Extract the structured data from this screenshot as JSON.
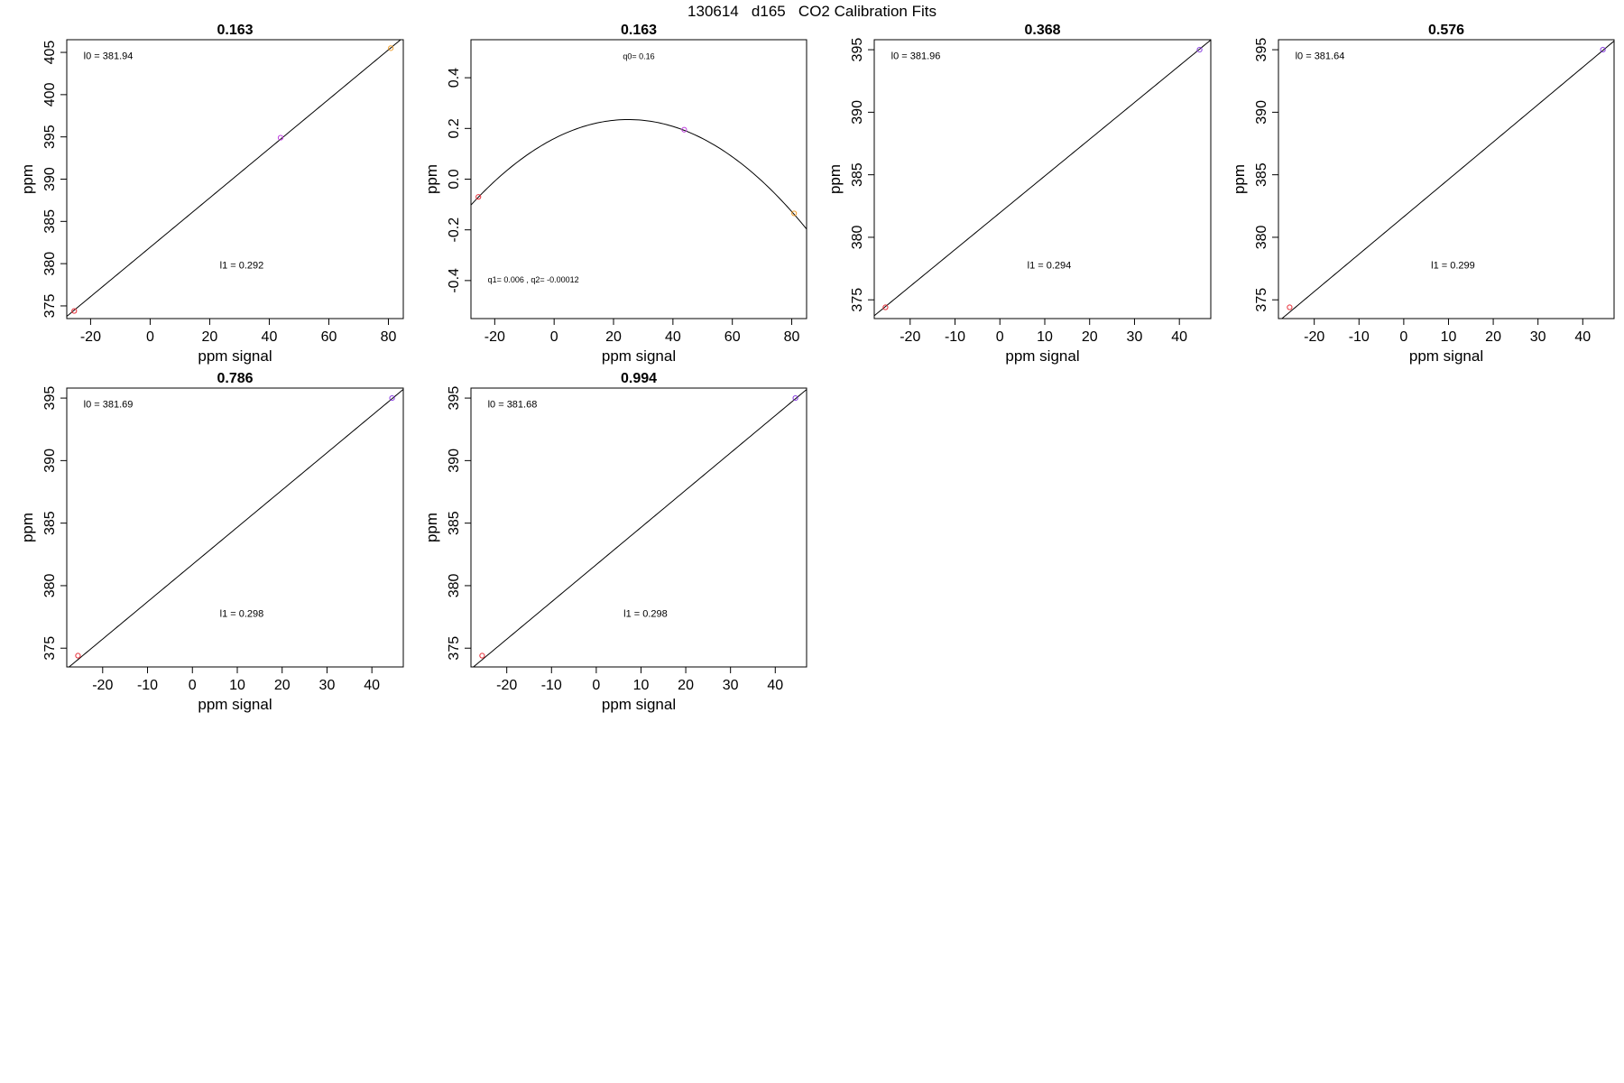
{
  "page": {
    "title": "130614   d165   CO2 Calibration Fits"
  },
  "chart_data": [
    {
      "type": "line",
      "fit": "linear",
      "title": "0.163",
      "xlabel": "ppm signal",
      "ylabel": "ppm",
      "xlim": [
        -28,
        85
      ],
      "ylim": [
        373.5,
        406.5
      ],
      "xticks": [
        -20,
        0,
        20,
        40,
        60,
        80
      ],
      "yticks": [
        375,
        380,
        385,
        390,
        395,
        400,
        405
      ],
      "intercept": 381.94,
      "slope": 0.292,
      "annotations": [
        "l0 =  381.94",
        "l1 =  0.292"
      ],
      "points": [
        {
          "x": -25.5,
          "y": 374.4,
          "color": "#e8303a"
        },
        {
          "x": 43.8,
          "y": 394.9,
          "color": "#c040e0"
        },
        {
          "x": 80.8,
          "y": 405.5,
          "color": "#f0a030"
        }
      ]
    },
    {
      "type": "line",
      "fit": "quadratic",
      "title": "0.163",
      "xlabel": "ppm signal",
      "ylabel": "ppm",
      "xlim": [
        -28,
        85
      ],
      "ylim": [
        -0.55,
        0.55
      ],
      "xticks": [
        -20,
        0,
        20,
        40,
        60,
        80
      ],
      "yticks": [
        -0.4,
        -0.2,
        0.0,
        0.2,
        0.4
      ],
      "ytick_labels": [
        "-0.4",
        "-0.2",
        "0.0",
        "0.2",
        "0.4"
      ],
      "q0": 0.16,
      "q1": 0.006,
      "q2": -0.00012,
      "annotations": [
        "q0= 0.16",
        "q1= 0.006 , q2= -0.00012"
      ],
      "points": [
        {
          "x": -25.5,
          "y": -0.07,
          "color": "#e8303a"
        },
        {
          "x": 43.8,
          "y": 0.195,
          "color": "#c040e0"
        },
        {
          "x": 80.8,
          "y": -0.135,
          "color": "#f0a030"
        }
      ]
    },
    {
      "type": "line",
      "fit": "linear",
      "title": "0.368",
      "xlabel": "ppm signal",
      "ylabel": "ppm",
      "xlim": [
        -28,
        47
      ],
      "ylim": [
        373.5,
        395.8
      ],
      "xticks": [
        -20,
        -10,
        0,
        10,
        20,
        30,
        40
      ],
      "yticks": [
        375,
        380,
        385,
        390,
        395
      ],
      "intercept": 381.96,
      "slope": 0.294,
      "annotations": [
        "l0 =  381.96",
        "l1 =  0.294"
      ],
      "points": [
        {
          "x": -25.5,
          "y": 374.4,
          "color": "#e8303a"
        },
        {
          "x": 44.5,
          "y": 395.0,
          "color": "#8a40e0"
        }
      ]
    },
    {
      "type": "line",
      "fit": "linear",
      "title": "0.576",
      "xlabel": "ppm signal",
      "ylabel": "ppm",
      "xlim": [
        -28,
        47
      ],
      "ylim": [
        373.5,
        395.8
      ],
      "xticks": [
        -20,
        -10,
        0,
        10,
        20,
        30,
        40
      ],
      "yticks": [
        375,
        380,
        385,
        390,
        395
      ],
      "intercept": 381.64,
      "slope": 0.299,
      "annotations": [
        "l0 =  381.64",
        "l1 =  0.299"
      ],
      "points": [
        {
          "x": -25.5,
          "y": 374.4,
          "color": "#e8303a"
        },
        {
          "x": 44.5,
          "y": 395.0,
          "color": "#8a40e0"
        }
      ]
    },
    {
      "type": "line",
      "fit": "linear",
      "title": "0.786",
      "xlabel": "ppm signal",
      "ylabel": "ppm",
      "xlim": [
        -28,
        47
      ],
      "ylim": [
        373.5,
        395.8
      ],
      "xticks": [
        -20,
        -10,
        0,
        10,
        20,
        30,
        40
      ],
      "yticks": [
        375,
        380,
        385,
        390,
        395
      ],
      "intercept": 381.69,
      "slope": 0.298,
      "annotations": [
        "l0 =  381.69",
        "l1 =  0.298"
      ],
      "points": [
        {
          "x": -25.5,
          "y": 374.4,
          "color": "#e8303a"
        },
        {
          "x": 44.5,
          "y": 395.0,
          "color": "#8a40e0"
        }
      ]
    },
    {
      "type": "line",
      "fit": "linear",
      "title": "0.994",
      "xlabel": "ppm signal",
      "ylabel": "ppm",
      "xlim": [
        -28,
        47
      ],
      "ylim": [
        373.5,
        395.8
      ],
      "xticks": [
        -20,
        -10,
        0,
        10,
        20,
        30,
        40
      ],
      "yticks": [
        375,
        380,
        385,
        390,
        395
      ],
      "intercept": 381.68,
      "slope": 0.298,
      "annotations": [
        "l0 =  381.68",
        "l1 =  0.298"
      ],
      "points": [
        {
          "x": -25.5,
          "y": 374.4,
          "color": "#e8303a"
        },
        {
          "x": 44.5,
          "y": 395.0,
          "color": "#8a40e0"
        }
      ]
    }
  ]
}
